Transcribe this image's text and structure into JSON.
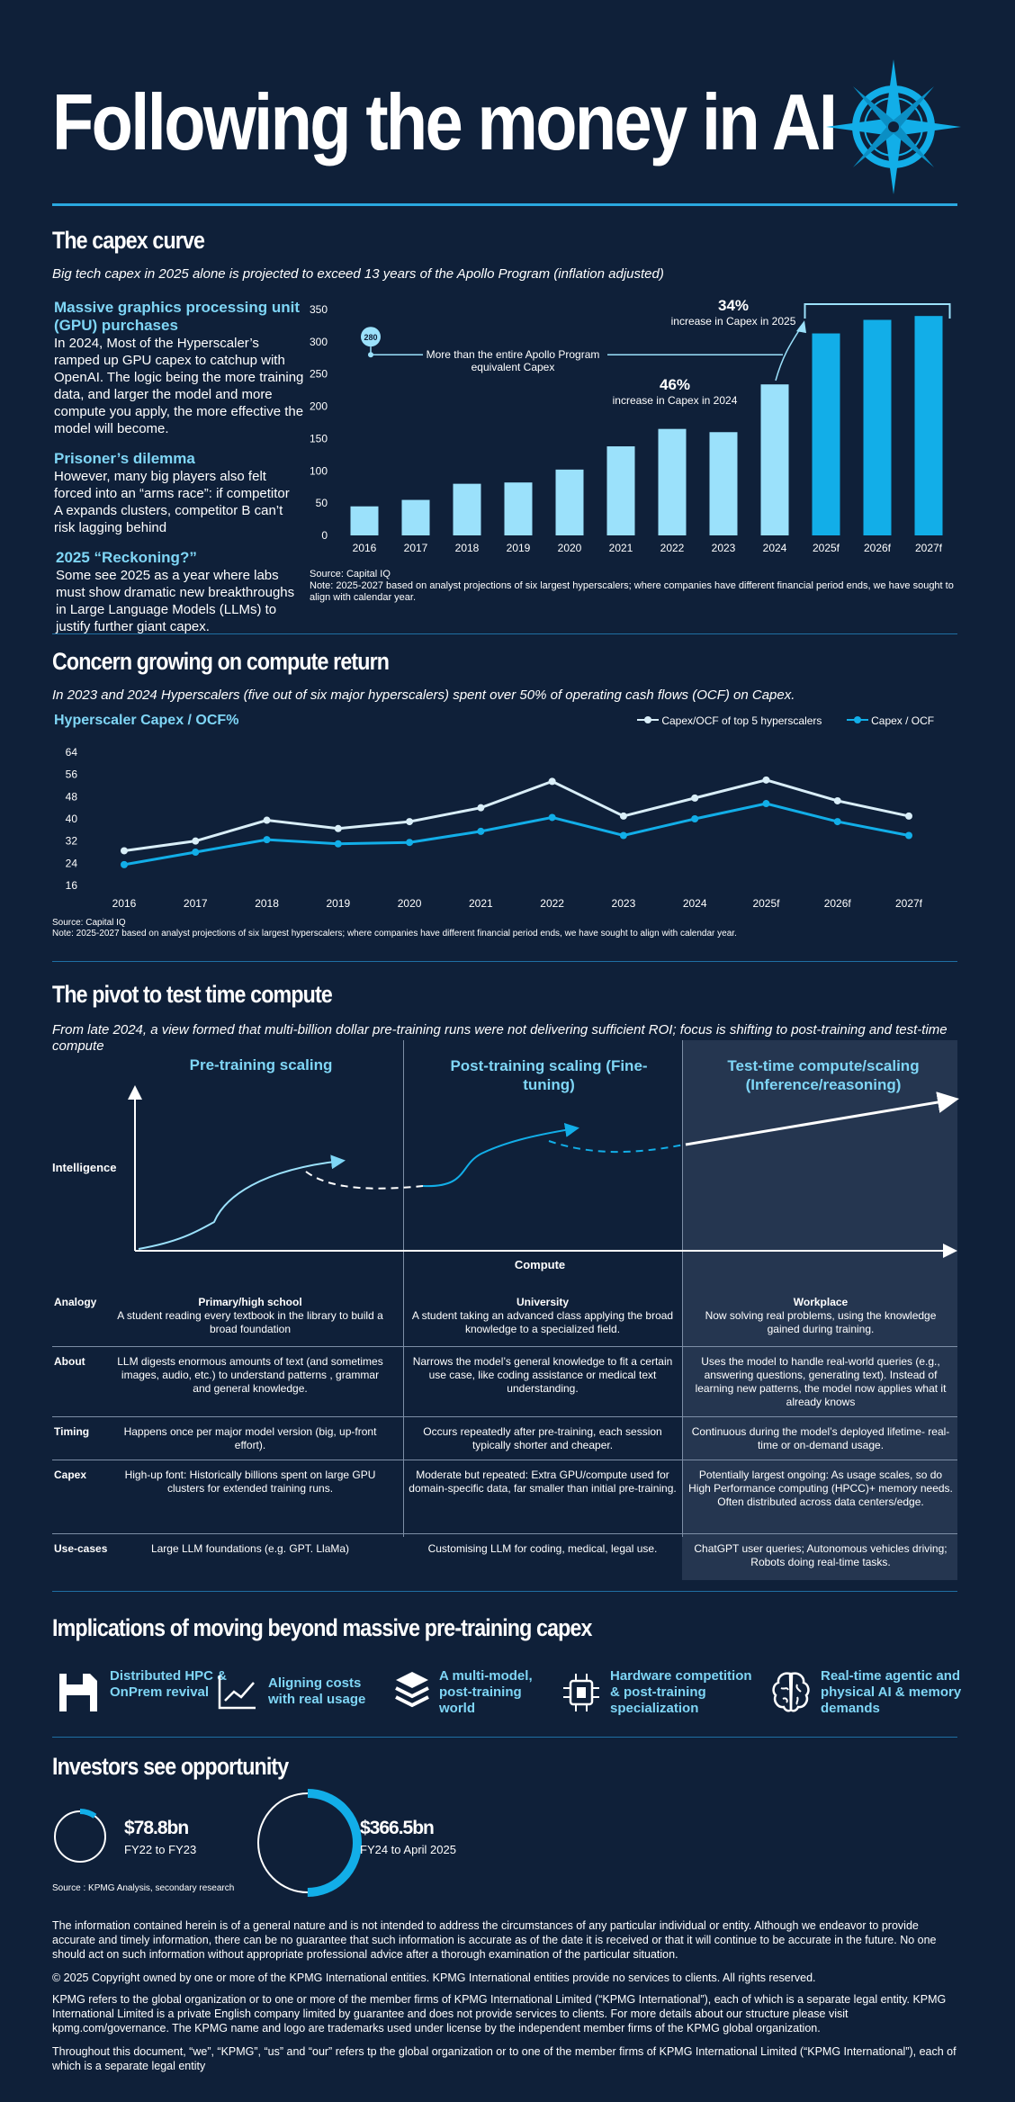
{
  "page": {
    "title": "Following the money in AI"
  },
  "capex": {
    "heading": "The capex curve",
    "subtitle": "Big tech capex in 2025 alone is projected to exceed 13 years of the Apollo Program (inflation adjusted)",
    "blocks": [
      {
        "head": "Massive graphics processing unit (GPU) purchases",
        "text": "In 2024, Most of the Hyperscaler’s ramped up GPU capex to catchup with OpenAI. The logic being the more training data, and larger the model and more compute you apply, the more effective the model will become."
      },
      {
        "head": "Prisoner’s dilemma",
        "text": "However, many big players also felt forced into an “arms race”: if competitor A expands clusters, competitor B can’t risk lagging behind"
      },
      {
        "head": "2025 “Reckoning?”",
        "text": "Some see 2025 as a year where labs must show dramatic new breakthroughs in Large Language Models (LLMs) to justify further giant capex."
      }
    ],
    "annotations": {
      "apollo_value": "280",
      "apollo_text": "More than the entire Apollo Program equivalent Capex",
      "pct_2024": "46%",
      "pct_2024_text": "increase in Capex in 2024",
      "pct_2025": "34%",
      "pct_2025_text": "increase in Capex in 2025"
    },
    "source": "Source: Capital IQ",
    "note": "Note: 2025-2027 based on analyst projections of six largest hyperscalers; where companies have different financial period ends, we have sought to align with calendar year."
  },
  "ocf": {
    "heading": "Concern growing on compute return",
    "subtitle": "In 2023 and 2024 Hyperscalers (five out of six major hyperscalers) spent over 50% of operating cash flows (OCF) on Capex.",
    "source": "Source: Capital IQ",
    "note": "Note: 2025-2027 based on analyst projections of six largest hyperscalers; where companies have different financial period ends, we have sought to align with calendar year."
  },
  "pivot": {
    "heading": "The pivot to test time compute",
    "subtitle": "From late 2024, a view formed that multi-billion dollar pre-training runs were not delivering sufficient ROI; focus is shifting to post-training and test-time compute",
    "columns": [
      "Pre-training scaling",
      "Post-training scaling (Fine-tuning)",
      "Test-time compute/scaling (Inference/reasoning)"
    ],
    "y_axis": "Intelligence",
    "x_axis": "Compute",
    "rows": [
      {
        "label": "Analogy",
        "cells": [
          {
            "bold": "Primary/high school",
            "text": "A student reading every textbook in the library to build a broad foundation"
          },
          {
            "bold": "University",
            "text": "A student taking an advanced class applying the broad knowledge to a specialized field."
          },
          {
            "bold": "Workplace",
            "text": "Now solving real problems, using the knowledge gained during training."
          }
        ]
      },
      {
        "label": "About",
        "cells": [
          {
            "bold": "",
            "text": "LLM digests enormous amounts of text (and sometimes images, audio, etc.) to understand patterns , grammar and general knowledge."
          },
          {
            "bold": "",
            "text": "Narrows the model’s general knowledge to fit a certain use case, like coding assistance or medical text understanding."
          },
          {
            "bold": "",
            "text": "Uses the model to handle real-world queries (e.g., answering questions, generating text). Instead of learning new patterns, the model now applies what it already knows"
          }
        ]
      },
      {
        "label": "Timing",
        "cells": [
          {
            "bold": "",
            "text": "Happens once per major model version (big, up-front effort)."
          },
          {
            "bold": "",
            "text": "Occurs repeatedly after pre-training, each session typically shorter and cheaper."
          },
          {
            "bold": "",
            "text": "Continuous during the model’s deployed lifetime- real-time or on-demand usage."
          }
        ]
      },
      {
        "label": "Capex",
        "cells": [
          {
            "bold": "",
            "text": "High-up font: Historically billions spent on large GPU clusters for extended training runs."
          },
          {
            "bold": "",
            "text": "Moderate but repeated: Extra GPU/compute used for domain-specific data, far smaller than initial pre-training."
          },
          {
            "bold": "",
            "text": "Potentially largest ongoing: As usage scales, so do High Performance computing (HPCC)+ memory needs. Often distributed across data centers/edge."
          }
        ]
      },
      {
        "label": "Use-cases",
        "cells": [
          {
            "bold": "",
            "text": "Large LLM foundations (e.g. GPT. LlaMa)"
          },
          {
            "bold": "",
            "text": "Customising LLM for coding, medical, legal use."
          },
          {
            "bold": "",
            "text": "ChatGPT user queries; Autonomous vehicles driving; Robots doing real-time tasks."
          }
        ]
      }
    ]
  },
  "implications": {
    "heading": "Implications of moving beyond massive pre-training capex",
    "items": [
      {
        "icon": "save-disk-icon",
        "label": "Distributed HPC & OnPrem revival"
      },
      {
        "icon": "trend-line-icon",
        "label": "Aligning costs with real usage"
      },
      {
        "icon": "layers-icon",
        "label": "A multi-model, post-training world"
      },
      {
        "icon": "chip-icon",
        "label": "Hardware competition & post-training specialization"
      },
      {
        "icon": "brain-icon",
        "label": "Real-time agentic and physical AI & memory demands"
      }
    ]
  },
  "investors": {
    "heading": "Investors see opportunity",
    "items": [
      {
        "value": "$78.8bn",
        "period": "FY22 to FY23",
        "fraction": 0.1
      },
      {
        "value": "$366.5bn",
        "period": "FY24 to April 2025",
        "fraction": 0.5
      }
    ],
    "source": "Source : KPMG Analysis, secondary research"
  },
  "legal": [
    "The information contained herein is of a general nature and is not intended to address the circumstances of any particular individual or entity. Although we endeavor to provide accurate and timely information, there can be no guarantee that such information is accurate as of the date it is received or that it will continue to be accurate in the future. No one should act on such information without appropriate professional advice after a thorough examination of the particular situation.",
    "© 2025 Copyright owned by one or more of the KPMG International entities. KPMG International entities provide no services to clients. All rights reserved.",
    "KPMG refers to the global organization or to one or more of the member firms of KPMG International Limited (“KPMG International”), each of which is a separate legal entity. KPMG International Limited is a private English company limited by guarantee and does not provide services to clients. For more details about our structure please visit kpmg.com/governance. The KPMG name and logo are trademarks used under license by the independent member firms of the KPMG global organization.",
    "Throughout this document, “we”, “KPMG”, “us” and “our” refers tp the global organization or to one of the member firms of KPMG International Limited (“KPMG International”), each of which is a separate legal entity"
  ],
  "colors": {
    "background": "#0f2039",
    "accent": "#2aa8e0",
    "light_bar": "#9be1fb",
    "forecast_bar": "#12aee8",
    "light_cyan": "#7fd6f6"
  },
  "chart_data": [
    {
      "type": "bar",
      "categories": [
        "2016",
        "2017",
        "2018",
        "2019",
        "2020",
        "2021",
        "2022",
        "2023",
        "2024",
        "2025f",
        "2026f",
        "2027f"
      ],
      "values": [
        45,
        55,
        80,
        82,
        102,
        138,
        165,
        160,
        234,
        313,
        334,
        340
      ],
      "ylim": [
        0,
        350
      ],
      "yticks": [
        0,
        50,
        100,
        150,
        200,
        250,
        300,
        350
      ],
      "forecast_from_index": 9,
      "grid": false
    },
    {
      "type": "line",
      "title": "Hyperscaler Capex / OCF%",
      "x": [
        "2016",
        "2017",
        "2018",
        "2019",
        "2020",
        "2021",
        "2022",
        "2023",
        "2024",
        "2025f",
        "2026f",
        "2027f"
      ],
      "series": [
        {
          "name": "Capex/OCF of top 5 hyperscalers",
          "values": [
            28.5,
            32,
            39.5,
            36.5,
            39,
            44,
            53.5,
            41,
            47.5,
            54,
            46.5,
            41
          ],
          "color": "#d9eef8"
        },
        {
          "name": "Capex / OCF",
          "values": [
            23.5,
            28,
            32.5,
            31,
            31.5,
            35.5,
            40.5,
            34,
            40,
            45.5,
            39,
            34
          ],
          "color": "#12aee8"
        }
      ],
      "ylim": [
        16,
        64
      ],
      "yticks": [
        16,
        24,
        32,
        40,
        48,
        56,
        64
      ],
      "legend": "top-right",
      "grid": false
    }
  ]
}
